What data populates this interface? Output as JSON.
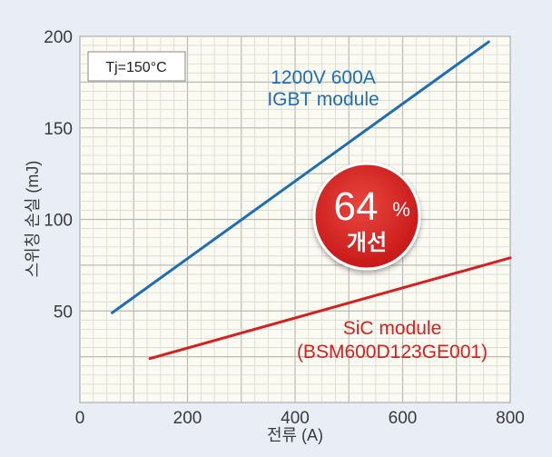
{
  "chart_data": {
    "type": "line",
    "xlabel": "전류 (A)",
    "ylabel": "스위칭 손실 (mJ)",
    "xlim": [
      0,
      800
    ],
    "ylim": [
      0,
      200
    ],
    "x_ticks": [
      0,
      200,
      400,
      600,
      800
    ],
    "y_ticks": [
      50,
      100,
      150,
      200
    ],
    "grid": true,
    "series": [
      {
        "name": "1200V 600A IGBT module",
        "color": "#1f6db3",
        "x": [
          60,
          760
        ],
        "y": [
          49,
          197
        ]
      },
      {
        "name": "SiC module (BSM600D123GE001)",
        "color": "#d42020",
        "x": [
          130,
          800
        ],
        "y": [
          24,
          79
        ]
      }
    ],
    "annotations": {
      "igbt_line1": "1200V 600A",
      "igbt_line2": "IGBT module",
      "sic_line1": "SiC module",
      "sic_line2": "(BSM600D123GE001)",
      "condition": "Tj=150°C",
      "badge_value": "64",
      "badge_unit": "%",
      "badge_text": "개선"
    },
    "badge_color": "#d42020"
  }
}
